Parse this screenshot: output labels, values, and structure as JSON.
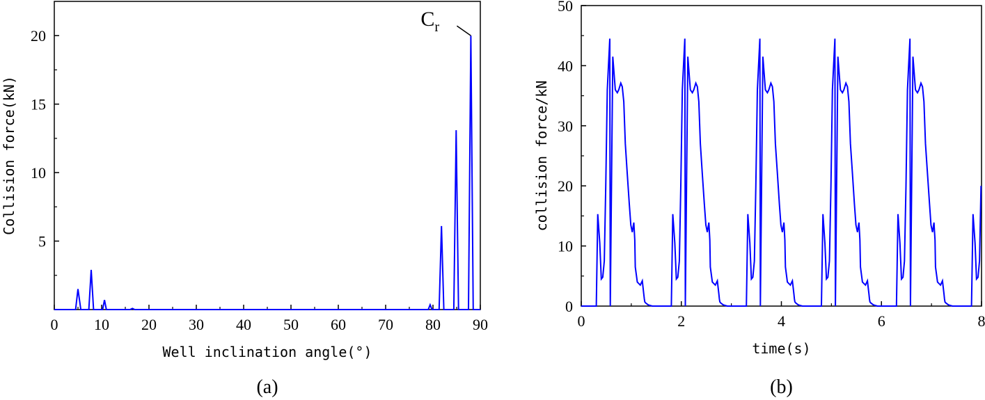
{
  "chart_data": [
    {
      "panel": "a",
      "type": "line",
      "caption": "(a)",
      "xlabel": "Well inclination angle(°)",
      "ylabel": "Collision force(kN)",
      "xlim": [
        0,
        90
      ],
      "ylim": [
        0,
        22.5
      ],
      "xticks": [
        "0",
        "10",
        "20",
        "30",
        "40",
        "50",
        "60",
        "70",
        "80",
        "90"
      ],
      "yticks": [
        "5",
        "10",
        "15",
        "20"
      ],
      "color": "#0000ff",
      "annotation": {
        "text": "C",
        "sub": "r",
        "x": 88,
        "y": 20
      },
      "series": [
        {
          "x": [
            0,
            4.5,
            5,
            5.6,
            7.3,
            7.8,
            8.3,
            10.2,
            10.6,
            11,
            16,
            16.5,
            17,
            79,
            79.4,
            79.8,
            81.3,
            81.8,
            82.3,
            84.4,
            84.9,
            85.4,
            87.5,
            88,
            88.5,
            90
          ],
          "y": [
            0,
            0,
            1.5,
            0,
            0,
            2.9,
            0,
            0,
            0.7,
            0,
            0,
            0.08,
            0,
            0,
            0.35,
            0,
            0,
            6.1,
            0,
            0,
            13.1,
            0,
            0,
            20,
            0,
            0
          ]
        }
      ]
    },
    {
      "panel": "b",
      "type": "line",
      "caption": "(b)",
      "xlabel": "time(s)",
      "ylabel": "collision force/kN",
      "xlim": [
        0,
        8
      ],
      "ylim": [
        0,
        50
      ],
      "xticks": [
        "0",
        "2",
        "4",
        "6",
        "8"
      ],
      "yticks": [
        "0",
        "10",
        "20",
        "30",
        "40",
        "50"
      ],
      "color": "#0000ff",
      "period": 1.5,
      "cycles": 6,
      "cycle_shape": {
        "t": [
          -1.22,
          0,
          0.03,
          0.07,
          0.1,
          0.13,
          0.16,
          0.19,
          0.22,
          0.27,
          0.33,
          0.38,
          0.42,
          0.45,
          0.49,
          0.52,
          0.55,
          0.58,
          0.62,
          0.66,
          0.69,
          0.72,
          0.75,
          0.76,
          0.77,
          0.78,
          0.82,
          0.88,
          0.92,
          0.95,
          0.96,
          0.97,
          0.99,
          1.04,
          1.12,
          1.2,
          1.22
        ],
        "y": [
          0,
          0,
          15.3,
          10.5,
          4.5,
          4.8,
          7.5,
          20,
          36,
          44.5,
          41.5,
          36,
          35.5,
          36,
          37.1,
          36.5,
          34,
          27,
          22,
          17,
          13.5,
          12.3,
          13.9,
          12.5,
          11,
          6.5,
          4,
          3.5,
          4.2,
          2,
          1.2,
          0.7,
          0.5,
          0.2,
          0,
          0,
          0
        ]
      },
      "cycle_start": 0.3,
      "x_end": 8
    }
  ]
}
